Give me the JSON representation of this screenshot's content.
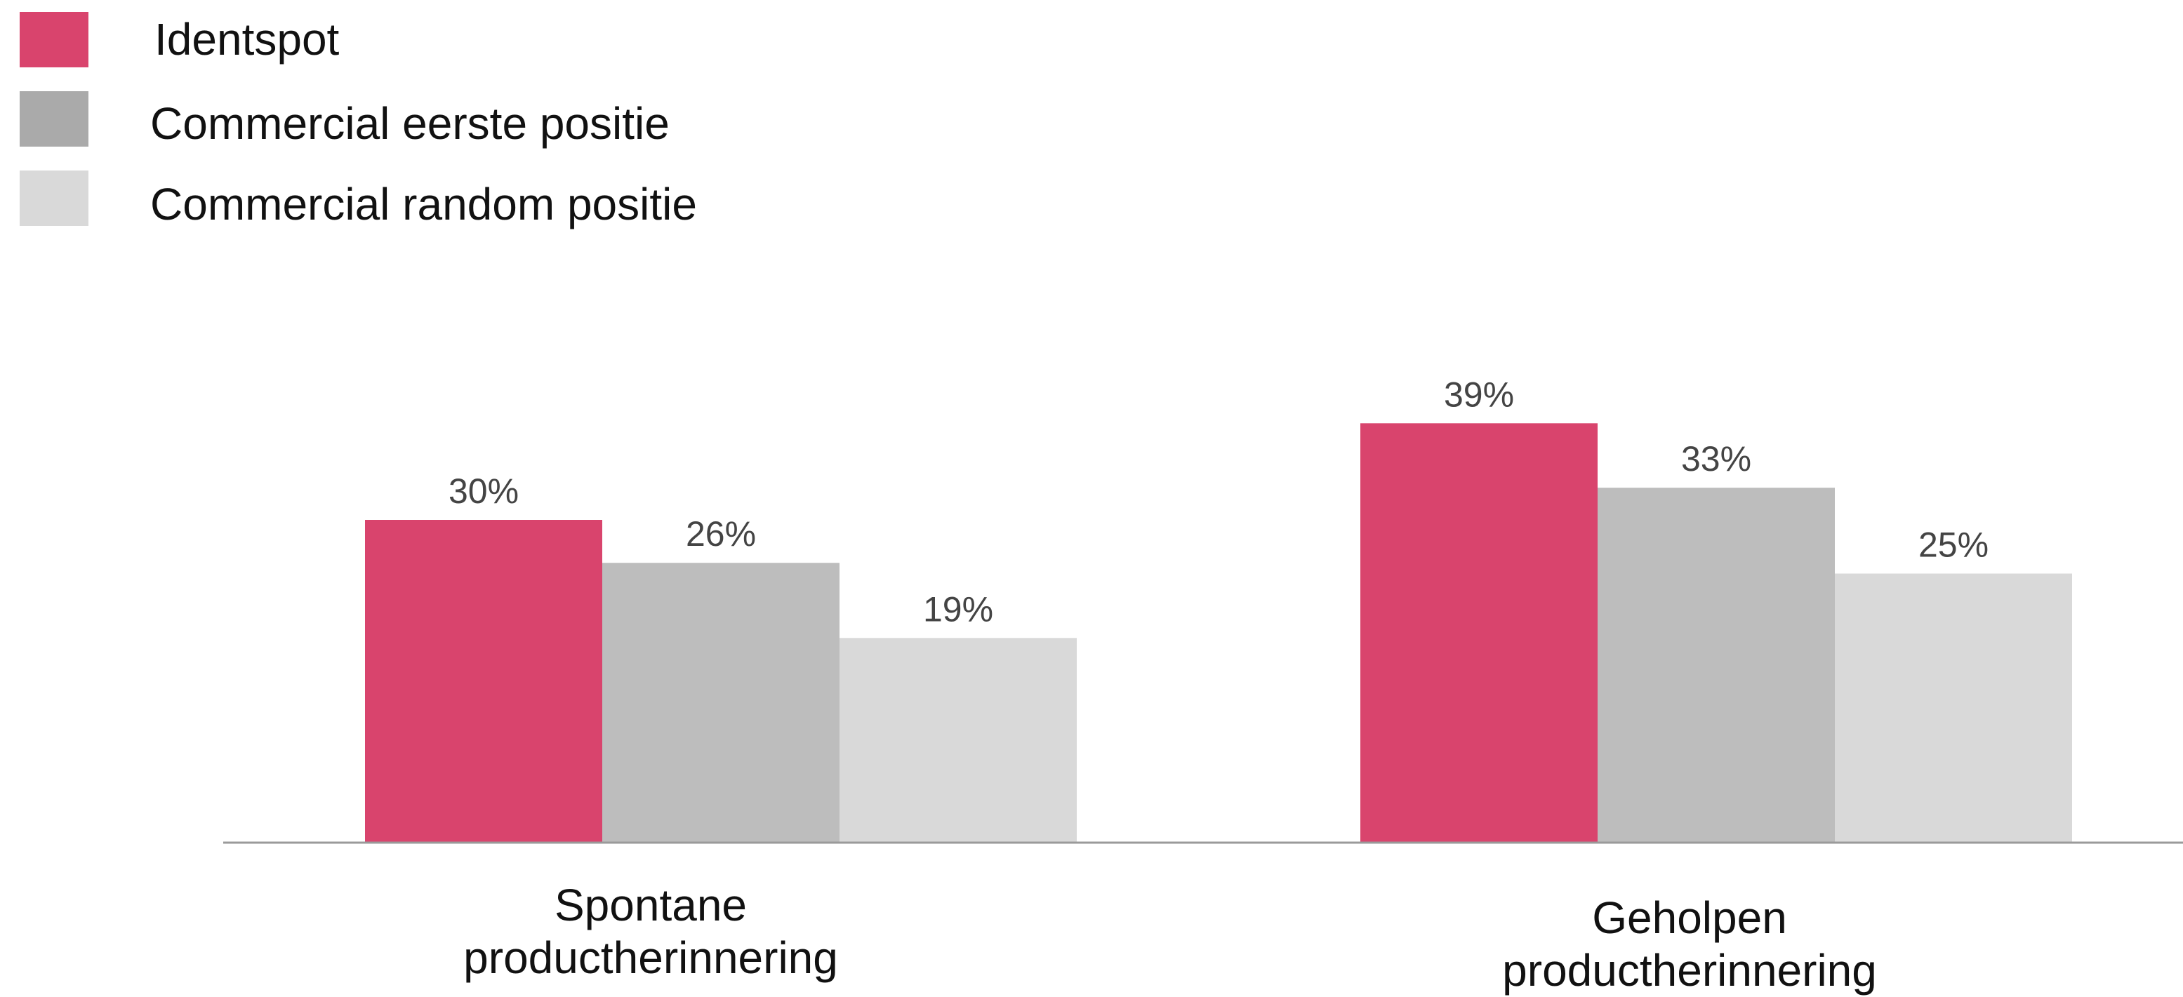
{
  "chart_data": {
    "type": "bar",
    "categories": [
      [
        "Spontane",
        "productherinnering"
      ],
      [
        "Geholpen",
        "productherinnering"
      ]
    ],
    "series": [
      {
        "name": "Identspot",
        "values": [
          30,
          39
        ],
        "labels": [
          "30%",
          "39%"
        ],
        "color": "#d9446d"
      },
      {
        "name": "Commercial eerste positie",
        "values": [
          26,
          33
        ],
        "labels": [
          "26%",
          "33%"
        ],
        "color": "#bdbdbd"
      },
      {
        "name": "Commercial random positie",
        "values": [
          19,
          25
        ],
        "labels": [
          "19%",
          "25%"
        ],
        "color": "#d9d9d9"
      }
    ],
    "legend_colors": [
      "#d9446d",
      "#aaaaaa",
      "#d9d9d9"
    ],
    "legend_position": "top-left",
    "axis_color": "#9a9a9a",
    "unit": "%",
    "ylim": [
      0,
      40
    ],
    "grid": false
  }
}
